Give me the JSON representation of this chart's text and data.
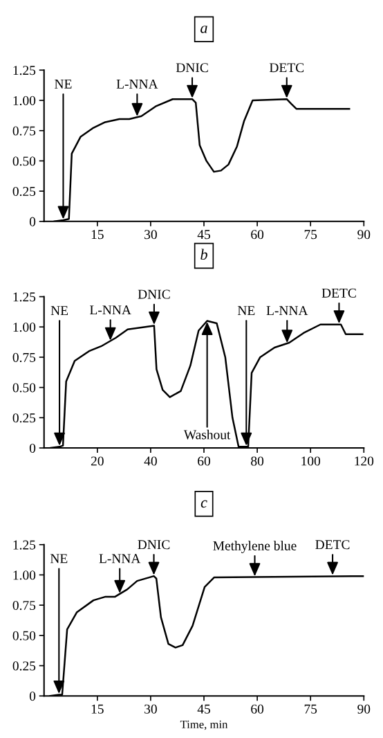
{
  "chart_data": [
    {
      "type": "line",
      "title": "a",
      "xlim": [
        0,
        90
      ],
      "xticks": [
        15,
        30,
        45,
        60,
        75,
        90
      ],
      "ylim": [
        0,
        1.25
      ],
      "yticks": [
        0,
        {
          "value": 0.25,
          "label": "0.25"
        },
        {
          "value": 0.5,
          "label": "0.50"
        },
        {
          "value": 0.75,
          "label": "0.75"
        },
        {
          "value": 1.0,
          "label": "1.00"
        },
        {
          "value": 1.25,
          "label": "1.25"
        }
      ],
      "series": [
        {
          "color": "#000000",
          "x": [
            2.9,
            5.4,
            7.0,
            7.8,
            10.3,
            13.7,
            17.2,
            21.2,
            24.0,
            27.4,
            31.4,
            36.2,
            41.7,
            42.7,
            43.8,
            45.7,
            47.8,
            49.8,
            51.9,
            54.3,
            56.3,
            58.7,
            68.3,
            69.6,
            71.0,
            85.9
          ],
          "values": [
            0,
            0.01,
            0.02,
            0.56,
            0.7,
            0.77,
            0.82,
            0.845,
            0.845,
            0.87,
            0.95,
            1.01,
            1.01,
            0.98,
            0.63,
            0.5,
            0.41,
            0.42,
            0.47,
            0.62,
            0.83,
            1.0,
            1.01,
            0.97,
            0.93,
            0.93
          ]
        }
      ],
      "annotations": [
        {
          "text": "NE",
          "x": 5.4,
          "y": 0.01
        },
        {
          "text": "L-NNA",
          "x": 26.2,
          "y": 0.86
        },
        {
          "text": "DNIC",
          "x": 41.7,
          "y": 1.01
        },
        {
          "text": "DETC",
          "x": 68.3,
          "y": 1.01
        }
      ]
    },
    {
      "type": "line",
      "title": "b",
      "xlim": [
        0,
        120
      ],
      "xticks": [
        20,
        40,
        60,
        80,
        100,
        120
      ],
      "ylim": [
        0,
        1.25
      ],
      "yticks": [
        0,
        {
          "value": 0.25,
          "label": "0.25"
        },
        {
          "value": 0.5,
          "label": "0.50"
        },
        {
          "value": 0.75,
          "label": "0.75"
        },
        {
          "value": 1.0,
          "label": "1.00"
        },
        {
          "value": 1.25,
          "label": "1.25"
        }
      ],
      "series": [
        {
          "color": "#000000",
          "x": [
            2.4,
            5.8,
            7.1,
            8.3,
            11.5,
            16.9,
            21.4,
            26.9,
            31.4,
            41.3,
            42.2,
            44.5,
            47.2,
            51.3,
            54.9,
            58.0,
            61.2,
            64.8,
            68.0,
            70.7,
            73.0,
            76.6,
            77.9,
            81.1,
            86.5,
            92.0,
            97.4,
            103.7,
            111.4,
            113.2,
            119.5
          ],
          "values": [
            0,
            0.01,
            0.02,
            0.55,
            0.72,
            0.8,
            0.84,
            0.91,
            0.98,
            1.01,
            0.65,
            0.48,
            0.42,
            0.47,
            0.68,
            0.97,
            1.05,
            1.03,
            0.75,
            0.25,
            0.01,
            0.01,
            0.62,
            0.75,
            0.83,
            0.87,
            0.95,
            1.02,
            1.02,
            0.94,
            0.94
          ]
        }
      ],
      "annotations": [
        {
          "text": "NE",
          "x": 5.8,
          "y": 0.01
        },
        {
          "text": "L-NNA",
          "x": 24.9,
          "y": 0.88
        },
        {
          "text": "DNIC",
          "x": 41.3,
          "y": 1.01
        },
        {
          "text": "Washout",
          "x": 61.2,
          "y": 1.05
        },
        {
          "text": "NE",
          "x": 75.9,
          "y": 0.01
        },
        {
          "text": "L-NNA",
          "x": 91.2,
          "y": 0.86
        },
        {
          "text": "DETC",
          "x": 110.7,
          "y": 1.02
        }
      ]
    },
    {
      "type": "line",
      "title": "c",
      "xlabel": "Time, min",
      "xlim": [
        0,
        90
      ],
      "xticks": [
        15,
        30,
        45,
        60,
        75,
        90
      ],
      "ylim": [
        0,
        1.25
      ],
      "yticks": [
        0,
        {
          "value": 0.25,
          "label": "0.25"
        },
        {
          "value": 0.5,
          "label": "0.50"
        },
        {
          "value": 0.75,
          "label": "0.75"
        },
        {
          "value": 1.0,
          "label": "1.00"
        },
        {
          "value": 1.25,
          "label": "1.25"
        }
      ],
      "series": [
        {
          "color": "#000000",
          "x": [
            1.7,
            4.2,
            5.1,
            6.5,
            9.2,
            13.9,
            17.3,
            20.0,
            23.4,
            26.2,
            30.9,
            31.6,
            32.9,
            35.0,
            37.0,
            39.0,
            41.8,
            45.2,
            47.9,
            90.0
          ],
          "values": [
            0,
            0.01,
            0.01,
            0.55,
            0.69,
            0.79,
            0.82,
            0.82,
            0.88,
            0.95,
            0.99,
            0.97,
            0.65,
            0.43,
            0.4,
            0.42,
            0.58,
            0.9,
            0.98,
            0.99
          ]
        }
      ],
      "annotations": [
        {
          "text": "NE",
          "x": 4.2,
          "y": 0.01
        },
        {
          "text": "L-NNA",
          "x": 21.3,
          "y": 0.84
        },
        {
          "text": "DNIC",
          "x": 30.9,
          "y": 0.99
        },
        {
          "text": "Methylene blue",
          "x": 59.3,
          "y": 0.98
        },
        {
          "text": "DETC",
          "x": 81.2,
          "y": 0.99
        }
      ]
    }
  ]
}
